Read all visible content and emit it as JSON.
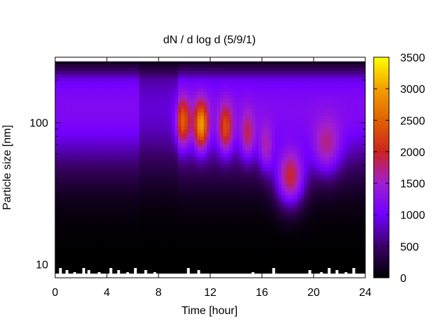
{
  "chart_data": {
    "type": "heatmap",
    "title": "dN / d log d (5/9/1)",
    "xlabel": "Time [hour]",
    "ylabel": "Particle size [nm]",
    "xlim": [
      0,
      24
    ],
    "ylim": [
      8,
      290
    ],
    "yscale": "log",
    "xticks": [
      "0",
      "4",
      "8",
      "12",
      "16",
      "20",
      "24"
    ],
    "yticks": [
      "10",
      "100"
    ],
    "colorbar": {
      "range": [
        0,
        3500
      ],
      "ticks": [
        "0",
        "500",
        "1000",
        "1500",
        "2000",
        "2500",
        "3000",
        "3500"
      ],
      "colormap": [
        "#000000",
        "#3a0066",
        "#7300ff",
        "#a01fd0",
        "#cc2222",
        "#e06000",
        "#f4a000",
        "#ffff00"
      ]
    },
    "grid": false,
    "legend": "colorbar-right",
    "events": [
      {
        "time_hour": 9.9,
        "size_nm": 100,
        "peak": 2500
      },
      {
        "time_hour": 11.3,
        "size_nm": 95,
        "peak": 3000
      },
      {
        "time_hour": 13.2,
        "size_nm": 90,
        "peak": 2400
      },
      {
        "time_hour": 14.9,
        "size_nm": 80,
        "peak": 2000
      },
      {
        "time_hour": 16.3,
        "size_nm": 65,
        "peak": 1900
      },
      {
        "time_hour": 18.2,
        "size_nm": 40,
        "peak": 2700
      },
      {
        "time_hour": 21.0,
        "size_nm": 65,
        "peak": 2000
      }
    ]
  }
}
